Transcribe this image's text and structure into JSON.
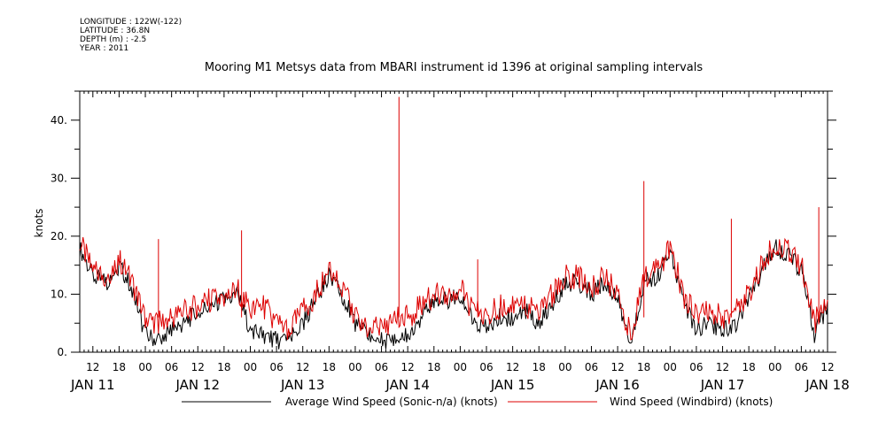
{
  "metadata": {
    "longitude": "LONGITUDE : 122W(-122)",
    "latitude": "LATITUDE : 36.8N",
    "depth": "DEPTH (m) : -2.5",
    "year": "YEAR : 2011"
  },
  "chart_data": {
    "type": "line",
    "title": "Mooring M1 Metsys data from MBARI instrument id 1396 at original sampling intervals",
    "ylabel": "knots",
    "xlabel": "",
    "ylim": [
      0,
      45
    ],
    "yticks": [
      0,
      10,
      20,
      30,
      40
    ],
    "ytick_labels": [
      "0.",
      "10.",
      "20.",
      "30.",
      "40."
    ],
    "xlim_hours": [
      "2011-01-11 09:00",
      "2011-01-18 12:00"
    ],
    "hour_tick_labels": [
      "12",
      "18",
      "00",
      "06",
      "12",
      "18",
      "00",
      "06",
      "12",
      "18",
      "00",
      "06",
      "12",
      "18",
      "00",
      "06",
      "12",
      "18",
      "00",
      "06",
      "12",
      "18",
      "00",
      "06",
      "12",
      "18",
      "00",
      "06",
      "12"
    ],
    "day_labels": [
      "JAN 11",
      "JAN 12",
      "JAN 13",
      "JAN 14",
      "JAN 15",
      "JAN 16",
      "JAN 17",
      "JAN 18"
    ],
    "grid": false,
    "legend_position": "bottom",
    "series": [
      {
        "name": "Average Wind Speed (Sonic-n/a) (knots)",
        "color": "#000000",
        "x": [
          "2011-01-11 09:00",
          "2011-01-11 12:00",
          "2011-01-11 15:00",
          "2011-01-11 18:00",
          "2011-01-11 21:00",
          "2011-01-12 00:00",
          "2011-01-12 03:00",
          "2011-01-12 06:00",
          "2011-01-12 09:00",
          "2011-01-12 12:00",
          "2011-01-12 15:00",
          "2011-01-12 18:00",
          "2011-01-12 21:00",
          "2011-01-13 00:00",
          "2011-01-13 03:00",
          "2011-01-13 06:00",
          "2011-01-13 09:00",
          "2011-01-13 12:00",
          "2011-01-13 15:00",
          "2011-01-13 18:00",
          "2011-01-13 21:00",
          "2011-01-14 00:00",
          "2011-01-14 03:00",
          "2011-01-14 06:00",
          "2011-01-14 09:00",
          "2011-01-14 12:00",
          "2011-01-14 15:00",
          "2011-01-14 18:00",
          "2011-01-14 21:00",
          "2011-01-15 00:00",
          "2011-01-15 03:00",
          "2011-01-15 06:00",
          "2011-01-15 09:00",
          "2011-01-15 12:00",
          "2011-01-15 15:00",
          "2011-01-15 18:00",
          "2011-01-15 21:00",
          "2011-01-16 00:00",
          "2011-01-16 03:00",
          "2011-01-16 06:00",
          "2011-01-16 09:00",
          "2011-01-16 12:00",
          "2011-01-16 15:00",
          "2011-01-16 18:00",
          "2011-01-16 21:00",
          "2011-01-17 00:00",
          "2011-01-17 03:00",
          "2011-01-17 06:00",
          "2011-01-17 09:00",
          "2011-01-17 12:00",
          "2011-01-17 15:00",
          "2011-01-17 18:00",
          "2011-01-17 21:00",
          "2011-01-18 00:00",
          "2011-01-18 03:00",
          "2011-01-18 06:00",
          "2011-01-18 09:00",
          "2011-01-18 12:00"
        ],
        "values": [
          18,
          13,
          12,
          15,
          11,
          3,
          2,
          4,
          5,
          7,
          8,
          9,
          10,
          4,
          3,
          2,
          2,
          5,
          9,
          13,
          10,
          5,
          3,
          2,
          2,
          3,
          6,
          9,
          9,
          10,
          5,
          4,
          6,
          6,
          7,
          5,
          8,
          12,
          12,
          10,
          12,
          9,
          1,
          12,
          13,
          17,
          9,
          4,
          5,
          4,
          5,
          9,
          14,
          18,
          17,
          14,
          3,
          8
        ]
      },
      {
        "name": "Wind Speed (Windbird) (knots)",
        "color": "#dd0000",
        "x": [
          "2011-01-11 09:00",
          "2011-01-11 12:00",
          "2011-01-11 15:00",
          "2011-01-11 18:00",
          "2011-01-11 21:00",
          "2011-01-12 00:00",
          "2011-01-12 03:00",
          "2011-01-12 06:00",
          "2011-01-12 09:00",
          "2011-01-12 12:00",
          "2011-01-12 15:00",
          "2011-01-12 18:00",
          "2011-01-12 21:00",
          "2011-01-13 00:00",
          "2011-01-13 03:00",
          "2011-01-13 06:00",
          "2011-01-13 09:00",
          "2011-01-13 12:00",
          "2011-01-13 15:00",
          "2011-01-13 18:00",
          "2011-01-13 21:00",
          "2011-01-14 00:00",
          "2011-01-14 03:00",
          "2011-01-14 06:00",
          "2011-01-14 09:00",
          "2011-01-14 12:00",
          "2011-01-14 15:00",
          "2011-01-14 18:00",
          "2011-01-14 21:00",
          "2011-01-15 00:00",
          "2011-01-15 03:00",
          "2011-01-15 06:00",
          "2011-01-15 09:00",
          "2011-01-15 12:00",
          "2011-01-15 15:00",
          "2011-01-15 18:00",
          "2011-01-15 21:00",
          "2011-01-16 00:00",
          "2011-01-16 03:00",
          "2011-01-16 06:00",
          "2011-01-16 09:00",
          "2011-01-16 12:00",
          "2011-01-16 15:00",
          "2011-01-16 18:00",
          "2011-01-16 21:00",
          "2011-01-17 00:00",
          "2011-01-17 03:00",
          "2011-01-17 06:00",
          "2011-01-17 09:00",
          "2011-01-17 12:00",
          "2011-01-17 15:00",
          "2011-01-17 18:00",
          "2011-01-17 21:00",
          "2011-01-18 00:00",
          "2011-01-18 03:00",
          "2011-01-18 06:00",
          "2011-01-18 09:00",
          "2011-01-18 12:00"
        ],
        "values": [
          19,
          14,
          13,
          16,
          12,
          6,
          5,
          6,
          7,
          8,
          9,
          9,
          11,
          7,
          8,
          5,
          4,
          7,
          10,
          14,
          11,
          6,
          4,
          4,
          6,
          6,
          8,
          10,
          10,
          11,
          7,
          6,
          8,
          8,
          8,
          7,
          10,
          13,
          13,
          11,
          13,
          10,
          3,
          13,
          14,
          18,
          10,
          6,
          7,
          6,
          7,
          10,
          15,
          19,
          18,
          15,
          5,
          9
        ]
      }
    ],
    "spikes": [
      {
        "series": 1,
        "x": "2011-01-12 03:00",
        "value": 19.5
      },
      {
        "series": 1,
        "x": "2011-01-12 22:00",
        "value": 21
      },
      {
        "series": 1,
        "x": "2011-01-14 10:00",
        "value": 44
      },
      {
        "series": 1,
        "x": "2011-01-15 04:00",
        "value": 16
      },
      {
        "series": 1,
        "x": "2011-01-16 18:00",
        "value": 29.5
      },
      {
        "series": 1,
        "x": "2011-01-17 14:00",
        "value": 23
      },
      {
        "series": 1,
        "x": "2011-01-18 10:00",
        "value": 25
      }
    ]
  }
}
